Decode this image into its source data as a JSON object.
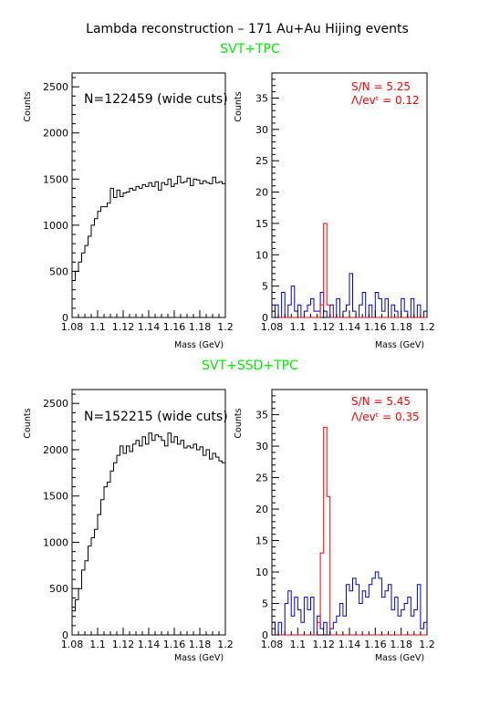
{
  "figure": {
    "title": "Lambda reconstruction – 171 Au+Au Hijing events",
    "section_top": "SVT+TPC",
    "section_bottom": "SVT+SSD+TPC",
    "accent_green": "#00ee00"
  },
  "chart_data": [
    {
      "id": "top_left",
      "type": "histogram",
      "title": "",
      "xlabel": "Mass (GeV)",
      "ylabel": "Counts",
      "xlim": [
        1.08,
        1.2
      ],
      "ylim": [
        0,
        2650
      ],
      "x_ticks": [
        "1.08",
        "1.1",
        "1.12",
        "1.14",
        "1.16",
        "1.18",
        "1.2"
      ],
      "y_ticks": [
        "0",
        "500",
        "1000",
        "1500",
        "2000",
        "2500"
      ],
      "annotation": "N=122459 (wide cuts)",
      "bin_width": 0.0025,
      "series": [
        {
          "color": "#000000",
          "values": [
            400,
            500,
            600,
            700,
            780,
            880,
            1000,
            1070,
            1150,
            1200,
            1200,
            1240,
            1400,
            1300,
            1380,
            1310,
            1350,
            1360,
            1400,
            1380,
            1420,
            1400,
            1440,
            1420,
            1460,
            1420,
            1470,
            1380,
            1460,
            1440,
            1500,
            1420,
            1450,
            1530,
            1460,
            1470,
            1510,
            1430,
            1500,
            1490,
            1450,
            1480,
            1460,
            1450,
            1520,
            1460,
            1470,
            1450
          ]
        }
      ]
    },
    {
      "id": "top_right",
      "type": "histogram",
      "title": "",
      "xlabel": "Mass (GeV)",
      "ylabel": "Counts",
      "xlim": [
        1.08,
        1.2
      ],
      "ylim": [
        0,
        39
      ],
      "x_ticks": [
        "1.08",
        "1.1",
        "1.12",
        "1.14",
        "1.16",
        "1.18",
        "1.2"
      ],
      "y_ticks": [
        "0",
        "5",
        "10",
        "15",
        "20",
        "25",
        "30",
        "35"
      ],
      "annotation_sn": "S/N = 5.25",
      "annotation_lev": "Λ/evᵗ = 0.12",
      "bin_width": 0.0025,
      "series": [
        {
          "color": "#0000cc",
          "values": [
            0,
            2,
            0,
            4,
            0,
            2,
            5,
            1,
            2,
            0,
            1,
            2,
            3,
            1,
            1,
            4,
            1,
            0,
            2,
            0,
            3,
            0,
            1,
            2,
            7,
            1,
            0,
            2,
            4,
            0,
            2,
            0,
            4,
            3,
            1,
            3,
            0,
            2,
            1,
            0,
            3,
            1,
            0,
            3,
            0,
            2,
            0,
            1
          ]
        },
        {
          "color": "#ff0000",
          "values": [
            0,
            0,
            0,
            0,
            0,
            0,
            0,
            0,
            0,
            0,
            0,
            0,
            0,
            0,
            0,
            2,
            15,
            2,
            0,
            0,
            0,
            0,
            0,
            0,
            0,
            0,
            0,
            0,
            0,
            0,
            0,
            0,
            0,
            0,
            0,
            0,
            0,
            0,
            0,
            0,
            0,
            0,
            0,
            0,
            0,
            0,
            0,
            0
          ]
        }
      ]
    },
    {
      "id": "bottom_left",
      "type": "histogram",
      "title": "",
      "xlabel": "Mass (GeV)",
      "ylabel": "Counts",
      "xlim": [
        1.08,
        1.2
      ],
      "ylim": [
        0,
        2650
      ],
      "x_ticks": [
        "1.08",
        "1.1",
        "1.12",
        "1.14",
        "1.16",
        "1.18",
        "1.2"
      ],
      "y_ticks": [
        "0",
        "500",
        "1000",
        "1500",
        "2000",
        "2500"
      ],
      "annotation": "N=152215 (wide cuts)",
      "bin_width": 0.0025,
      "series": [
        {
          "color": "#000000",
          "values": [
            260,
            380,
            500,
            700,
            800,
            960,
            1050,
            1140,
            1300,
            1460,
            1600,
            1650,
            1770,
            1860,
            1940,
            2040,
            1960,
            2040,
            1980,
            2060,
            2100,
            2040,
            2140,
            2060,
            2180,
            2100,
            2160,
            2140,
            2100,
            2040,
            2180,
            2080,
            2140,
            2060,
            2100,
            2020,
            2040,
            2020,
            2060,
            2000,
            2030,
            1940,
            2000,
            1900,
            1960,
            1920,
            1880,
            1860
          ]
        }
      ]
    },
    {
      "id": "bottom_right",
      "type": "histogram",
      "title": "",
      "xlabel": "Mass (GeV)",
      "ylabel": "Counts",
      "xlim": [
        1.08,
        1.2
      ],
      "ylim": [
        0,
        39
      ],
      "x_ticks": [
        "1.08",
        "1.1",
        "1.12",
        "1.14",
        "1.16",
        "1.18",
        "1.2"
      ],
      "y_ticks": [
        "0",
        "5",
        "10",
        "15",
        "20",
        "25",
        "30",
        "35"
      ],
      "annotation_sn": "S/N = 5.45",
      "annotation_lev": "Λ/evᵗ = 0.35",
      "bin_width": 0.0025,
      "series": [
        {
          "color": "#0000cc",
          "values": [
            2,
            0,
            2,
            0,
            5,
            7,
            3,
            6,
            4,
            2,
            6,
            4,
            6,
            0,
            3,
            1,
            2,
            0,
            1,
            2,
            3,
            5,
            3,
            8,
            7,
            9,
            8,
            5,
            7,
            6,
            8,
            9,
            10,
            9,
            6,
            7,
            8,
            4,
            6,
            3,
            4,
            5,
            6,
            3,
            4,
            8,
            1,
            2
          ]
        },
        {
          "color": "#ff0000",
          "values": [
            0,
            0,
            0,
            0,
            0,
            0,
            0,
            0,
            0,
            0,
            0,
            0,
            0,
            0,
            2,
            13,
            33,
            22,
            0,
            0,
            0,
            0,
            0,
            0,
            0,
            0,
            0,
            0,
            0,
            0,
            0,
            0,
            0,
            0,
            0,
            0,
            0,
            0,
            0,
            0,
            0,
            0,
            0,
            0,
            0,
            0,
            0,
            0
          ]
        }
      ]
    }
  ]
}
